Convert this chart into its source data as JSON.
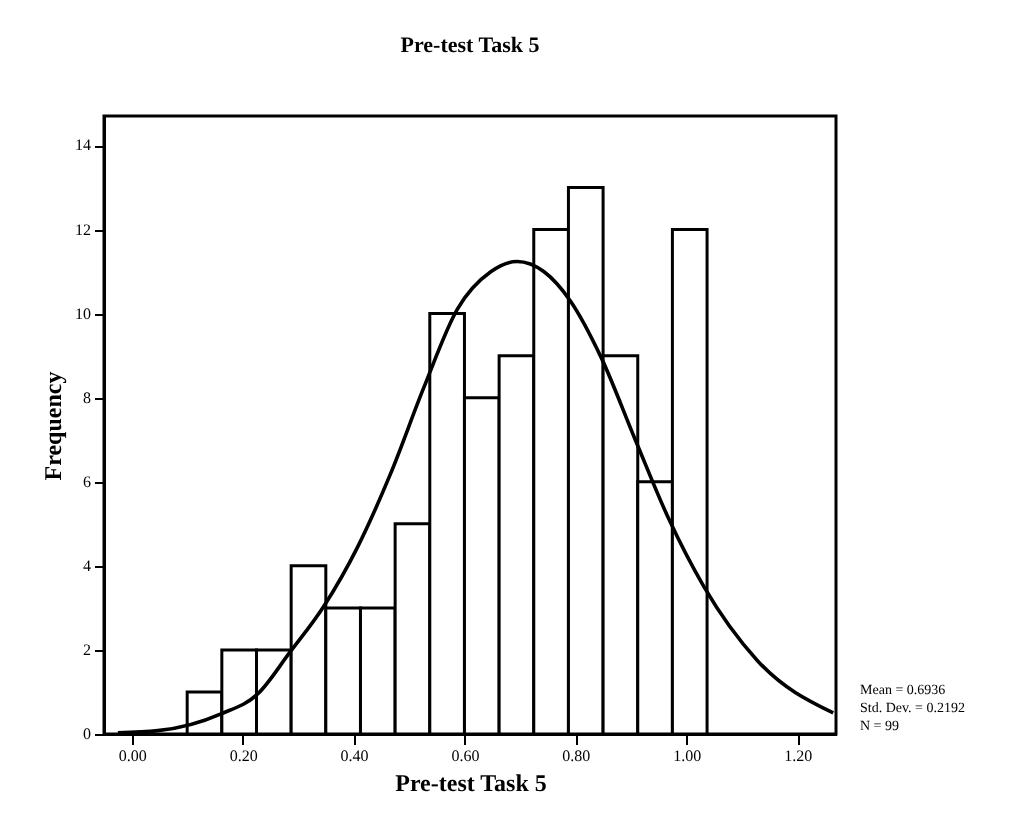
{
  "chart_data": {
    "type": "histogram",
    "title": "Pre-test Task 5",
    "xlabel": "Pre-test Task 5",
    "ylabel": "Frequency",
    "bins": [
      0.1,
      0.1625,
      0.225,
      0.2875,
      0.35,
      0.4125,
      0.475,
      0.5375,
      0.6,
      0.6625,
      0.725,
      0.7875,
      0.85,
      0.9125,
      0.975,
      1.0375
    ],
    "values": [
      1,
      2,
      2,
      4,
      3,
      3,
      5,
      10,
      8,
      9,
      12,
      13,
      9,
      6,
      12
    ],
    "color": "#ffffff",
    "series": [
      {
        "type": "line",
        "color": "#000000",
        "x": [
          -0.025,
          0.047,
          0.161,
          0.227,
          0.285,
          0.347,
          0.407,
          0.467,
          0.527,
          0.587,
          0.648,
          0.695,
          0.743,
          0.791,
          0.846,
          0.908,
          0.969,
          1.032,
          1.128,
          1.265
        ],
        "values": [
          0.03,
          0.08,
          0.48,
          0.95,
          1.94,
          3.05,
          4.44,
          6.2,
          8.25,
          10.1,
          11.0,
          11.24,
          11.0,
          10.3,
          8.97,
          7.0,
          5.1,
          3.5,
          1.75,
          0.5
        ]
      }
    ],
    "xlim": [
      -0.05,
      1.27
    ],
    "ylim": [
      0,
      14.7
    ],
    "xticks": [
      {
        "value": 0,
        "label": "0.00"
      },
      {
        "value": 0.2,
        "label": "0.20"
      },
      {
        "value": 0.4,
        "label": "0.40"
      },
      {
        "value": 0.6,
        "label": "0.60"
      },
      {
        "value": 0.8,
        "label": "0.80"
      },
      {
        "value": 1,
        "label": "1.00"
      },
      {
        "value": 1.2,
        "label": "1.20"
      }
    ],
    "yticks": [
      0,
      2,
      4,
      6,
      8,
      10,
      12,
      14
    ],
    "grid": false,
    "annotations": [
      "Mean = 0.6936",
      "Std. Dev. = 0.2192",
      "N = 99"
    ]
  }
}
